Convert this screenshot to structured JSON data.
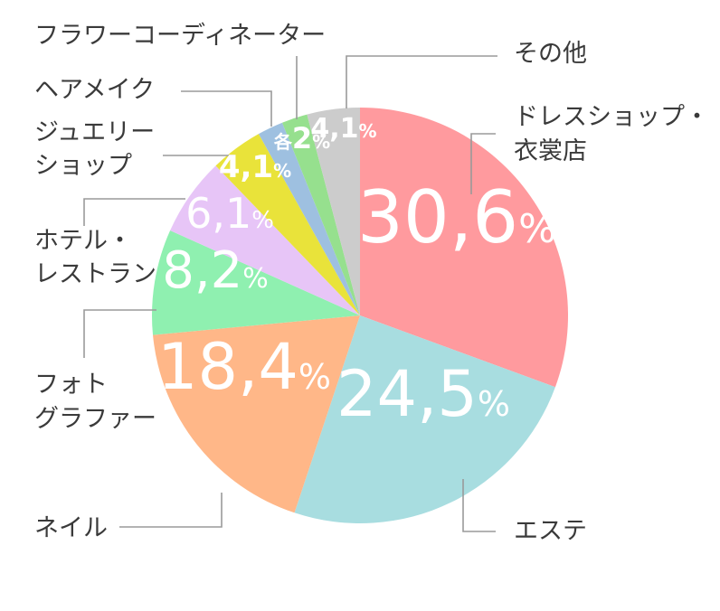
{
  "chart_data": {
    "type": "pie",
    "slices": [
      {
        "label": [
          "ドレスショップ・",
          "衣裳店"
        ],
        "value": 30.6,
        "display": "30,6",
        "color": "#ff9a9e"
      },
      {
        "label": [
          "エステ"
        ],
        "value": 24.5,
        "display": "24,5",
        "color": "#a8dde0"
      },
      {
        "label": [
          "ネイル"
        ],
        "value": 18.4,
        "display": "18,4",
        "color": "#ffb788"
      },
      {
        "label": [
          "フォト",
          "グラファー"
        ],
        "value": 8.2,
        "display": "8,2",
        "color": "#8ff0b0"
      },
      {
        "label": [
          "ホテル・",
          "レストラン"
        ],
        "value": 6.1,
        "display": "6,1",
        "color": "#e7c5f7"
      },
      {
        "label": [
          "ジュエリー",
          "ショップ"
        ],
        "value": 4.1,
        "display": "4,1",
        "color": "#e9e33a"
      },
      {
        "label": [
          "ヘアメイク"
        ],
        "value": 2,
        "display": "2",
        "color": "#9ec0e0"
      },
      {
        "label": [
          "フラワーコーディネーター"
        ],
        "value": 2,
        "display": "2",
        "color": "#96e08e"
      },
      {
        "label": [
          "その他"
        ],
        "value": 4.1,
        "display": "4,1",
        "color": "#cccccc"
      }
    ],
    "shared_label_prefix": "各",
    "percent_sign": "%"
  }
}
